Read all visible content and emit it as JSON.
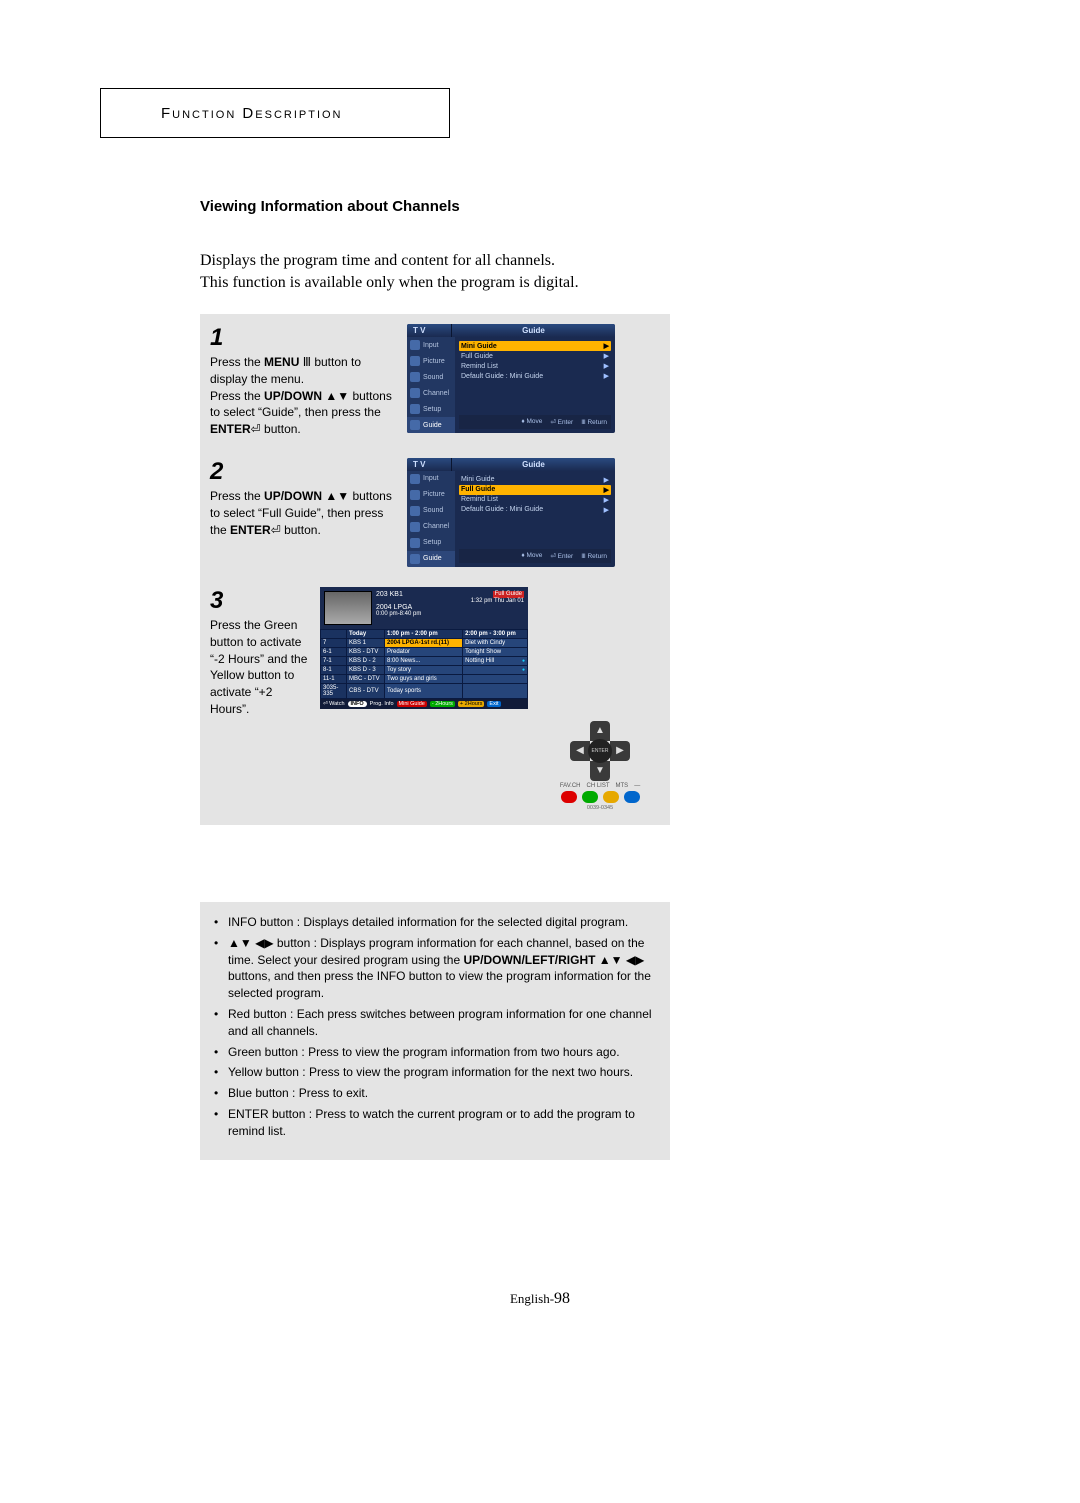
{
  "header": "Function Description",
  "section_title": "Viewing Information about Channels",
  "intro_line1": "Displays the program time and content for all channels.",
  "intro_line2": "This function is available only when the program is digital.",
  "steps": [
    {
      "num": "1",
      "text": "Press the <b>MENU</b> Ⅲ button to display the menu.<br>Press the <b>UP/DOWN</b> ▲▼ buttons to select “Guide”, then press the <b>ENTER</b>⏎ button.",
      "highlight_index": 0
    },
    {
      "num": "2",
      "text": "Press the <b>UP/DOWN</b> ▲▼ buttons to select “Full Guide”, then press the <b>ENTER</b>⏎ button.",
      "highlight_index": 1
    },
    {
      "num": "3",
      "text": "Press the Green button to activate “-2 Hours” and the Yellow button to activate “+2 Hours”."
    }
  ],
  "tv_menu": {
    "title_left": "T V",
    "title_right": "Guide",
    "side": [
      "Input",
      "Picture",
      "Sound",
      "Channel",
      "Setup",
      "Guide"
    ],
    "items": [
      {
        "label": "Mini Guide",
        "extra": ""
      },
      {
        "label": "Full Guide",
        "extra": ""
      },
      {
        "label": "Remind List",
        "extra": ""
      },
      {
        "label": "Default Guide",
        "extra": ": Mini Guide"
      }
    ],
    "footer": [
      "♦ Move",
      "⏎ Enter",
      "Ⅲ Return"
    ]
  },
  "full_guide": {
    "banner_title": "Full Guide",
    "chan_header": "203 KB1",
    "datetime": "1:32 pm Thu Jan 01",
    "prog_title": "2004 LPGA",
    "prog_time": "0:00 pm-8:40 pm",
    "cols": [
      "Today",
      "1:00 pm - 2:00 pm",
      "2:00 pm - 3:00 pm"
    ],
    "rows": [
      {
        "ch": "7",
        "name": "KBS 1",
        "c1": "2004 LPGA-1st rd.(11)",
        "c2": "Diet with Cindy",
        "hl": "c1"
      },
      {
        "ch": "6-1",
        "name": "KBS - DTV",
        "c1": "Predator",
        "c2": "Tonight Show"
      },
      {
        "ch": "7-1",
        "name": "KBS D - 2",
        "c1": "8:00 News...",
        "c2": "Notting Hill",
        "dot2": true
      },
      {
        "ch": "8-1",
        "name": "KBS D - 3",
        "c1": "Toy story",
        "c2": "",
        "dot2": true
      },
      {
        "ch": "11-1",
        "name": "MBC - DTV",
        "c1": "Two guys and girls",
        "c2": ""
      },
      {
        "ch": "3035-335",
        "name": "CBS - DTV",
        "c1": "Today sports",
        "c2": ""
      }
    ],
    "footer": {
      "watch": "⏎ Watch",
      "info": "INFO",
      "info_text": "Prog. Info",
      "red": "Mini Guide",
      "green": "- 2Hours",
      "yellow": "+ 2Hours",
      "blue": "Exit"
    },
    "remote_center": "ENTER",
    "remote_labels": [
      "FAV.CH",
      "CH LIST",
      "MTS",
      "—"
    ],
    "remote_caption": "0039-0345"
  },
  "notes": [
    {
      "label": "INFO button : ",
      "text": "Displays detailed information for the selected digital program."
    },
    {
      "label": "▲▼ ◀▶ button : ",
      "text": "Displays program information for each channel, based on the time. Select your desired program using the <b>UP/DOWN/LEFT/RIGHT</b> ▲▼ ◀▶ buttons, and then press the INFO button to view the program information for the selected program."
    },
    {
      "label": "Red button : ",
      "text": "Each press switches between program information for one channel  and all channels."
    },
    {
      "label": "Green button : ",
      "text": "Press to view the program information from two hours ago."
    },
    {
      "label": "Yellow button : ",
      "text": "Press to view the program information for the next two hours."
    },
    {
      "label": "Blue button : ",
      "text": "Press to exit."
    },
    {
      "label": "ENTER button : ",
      "text": "Press to watch the current program or to add the program to remind list."
    }
  ],
  "page_footer_prefix": "English-",
  "page_footer_num": "98"
}
